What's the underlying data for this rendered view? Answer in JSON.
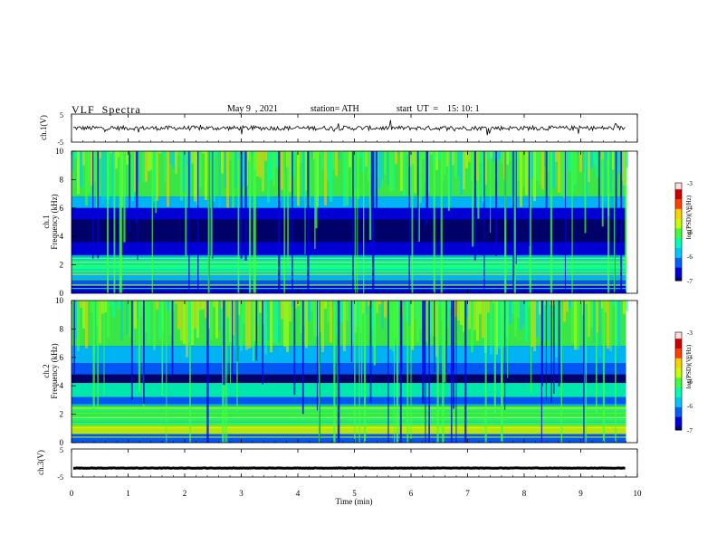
{
  "header": {
    "title": "VLF  Spectra",
    "date": "May 9  , 2021",
    "station": "station= ATH",
    "start_ut": "start  UT  =    15: 10: 1"
  },
  "chart_data": [
    {
      "type": "line",
      "ylabel": "ch.1(V)",
      "ylim": [
        -5,
        5
      ],
      "yticks": [
        "5",
        "-5"
      ],
      "x": [
        0,
        9.8
      ],
      "baseline": 0,
      "trace_color": "#000000"
    },
    {
      "type": "heatmap",
      "ylabel_line1": "ch.1",
      "ylabel_line2": "Frequency  (kHz)",
      "ylim": [
        0,
        10
      ],
      "yticks": [
        "0",
        "2",
        "4",
        "6",
        "8",
        "10"
      ],
      "xlim": [
        0,
        10
      ],
      "colorbar": {
        "label": "log(PSD)(V²/Hz)",
        "range": [
          -7,
          -3
        ],
        "ticks": [
          "-3",
          "-4",
          "-5",
          "-6",
          "-7"
        ]
      }
    },
    {
      "type": "heatmap",
      "ylabel_line1": "ch.2",
      "ylabel_line2": "Frequency  (kHz)",
      "ylim": [
        0,
        10
      ],
      "yticks": [
        "0",
        "2",
        "4",
        "6",
        "8",
        "10"
      ],
      "xlim": [
        0,
        10
      ],
      "colorbar": {
        "label": "log(PSD)(V²/Hz)",
        "range": [
          -7,
          -3
        ],
        "ticks": [
          "-3",
          "-4",
          "-5",
          "-6",
          "-7"
        ]
      }
    },
    {
      "type": "line",
      "ylabel": "ch.3(V)",
      "ylim": [
        -5,
        5
      ],
      "yticks": [
        "5",
        "-5"
      ],
      "x": [
        0,
        9.8
      ],
      "baseline": -1.8,
      "trace_color": "#000000"
    }
  ],
  "xaxis": {
    "label": "Time  (min)",
    "ticks": [
      "0",
      "1",
      "2",
      "3",
      "4",
      "5",
      "6",
      "7",
      "8",
      "9",
      "10"
    ],
    "xlim": [
      0,
      10
    ],
    "data_end": 9.8
  },
  "colormap": [
    "#000066",
    "#0000dd",
    "#0060ff",
    "#00c8ff",
    "#00ffb0",
    "#40ff40",
    "#c8ff00",
    "#ffd000",
    "#ff4000",
    "#cc0000",
    "#ffdede"
  ]
}
